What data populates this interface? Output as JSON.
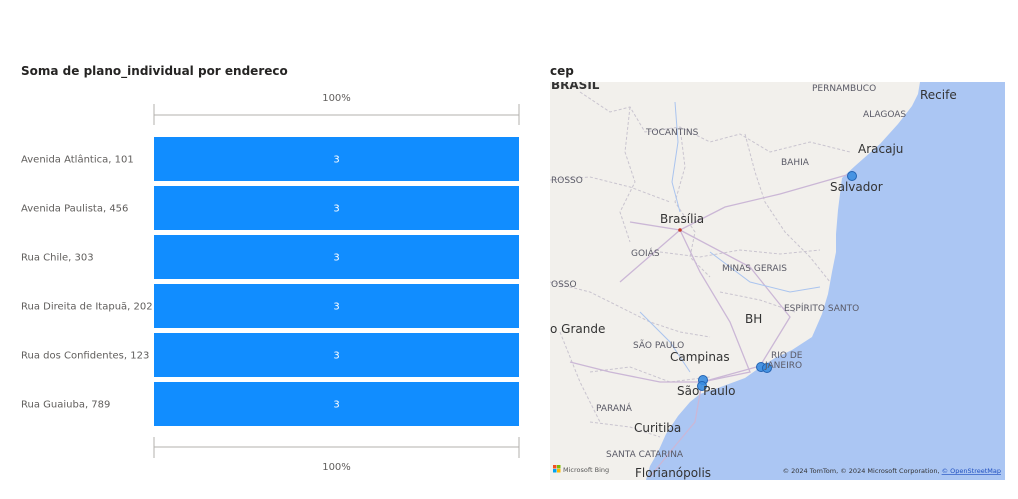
{
  "bar_visual": {
    "title": "Soma de plano_individual por endereco"
  },
  "chart_data": {
    "type": "bar",
    "orientation": "horizontal",
    "title": "Soma de plano_individual por endereco",
    "categories": [
      "Avenida Atlântica, 101",
      "Avenida Paulista, 456",
      "Rua Chile, 303",
      "Rua Direita de Itapuã, 202",
      "Rua dos Confidentes, 123",
      "Rua Guaiuba, 789"
    ],
    "values": [
      3,
      3,
      3,
      3,
      3,
      3
    ],
    "data_labels": [
      "3",
      "3",
      "3",
      "3",
      "3",
      "3"
    ],
    "axis_top_label": "100%",
    "axis_bottom_label": "100%",
    "xlim": [
      0,
      3
    ],
    "bar_color": "#118dff"
  },
  "map_visual": {
    "title": "cep",
    "labels": {
      "brasil": "BRASIL",
      "pernambuco": "PERNAMBUCO",
      "recife": "Recife",
      "alagoas": "ALAGOAS",
      "tocantins": "TOCANTINS",
      "aracaju": "Aracaju",
      "bahia": "BAHIA",
      "rosso": "ROSSO",
      "salvador": "Salvador",
      "brasilia": "Brasília",
      "goias": "GOIÁS",
      "minas_gerais": "MINAS GERAIS",
      "osso": "OSSO",
      "espirito_santo": "ESPÍRITO SANTO",
      "bh": "BH",
      "o_grande": "o Grande",
      "sao_paulo_state": "SÃO PAULO",
      "rio_de": "RIO DE",
      "janeiro": "JANEIRO",
      "campinas": "Campinas",
      "sao_paulo_city": "São Paulo",
      "parana": "PARANÁ",
      "curitiba": "Curitiba",
      "santa_catarina": "SANTA CATARINA",
      "florianopolis": "Florianópolis"
    },
    "logo_text": "Microsoft Bing",
    "attribution_text": "© 2024 TomTom, © 2024 Microsoft Corporation, ",
    "attribution_link": "© OpenStreetMap",
    "marker_color": "#3b8de0",
    "land_color": "#f2f0ec",
    "water_color": "#abc6f3"
  }
}
